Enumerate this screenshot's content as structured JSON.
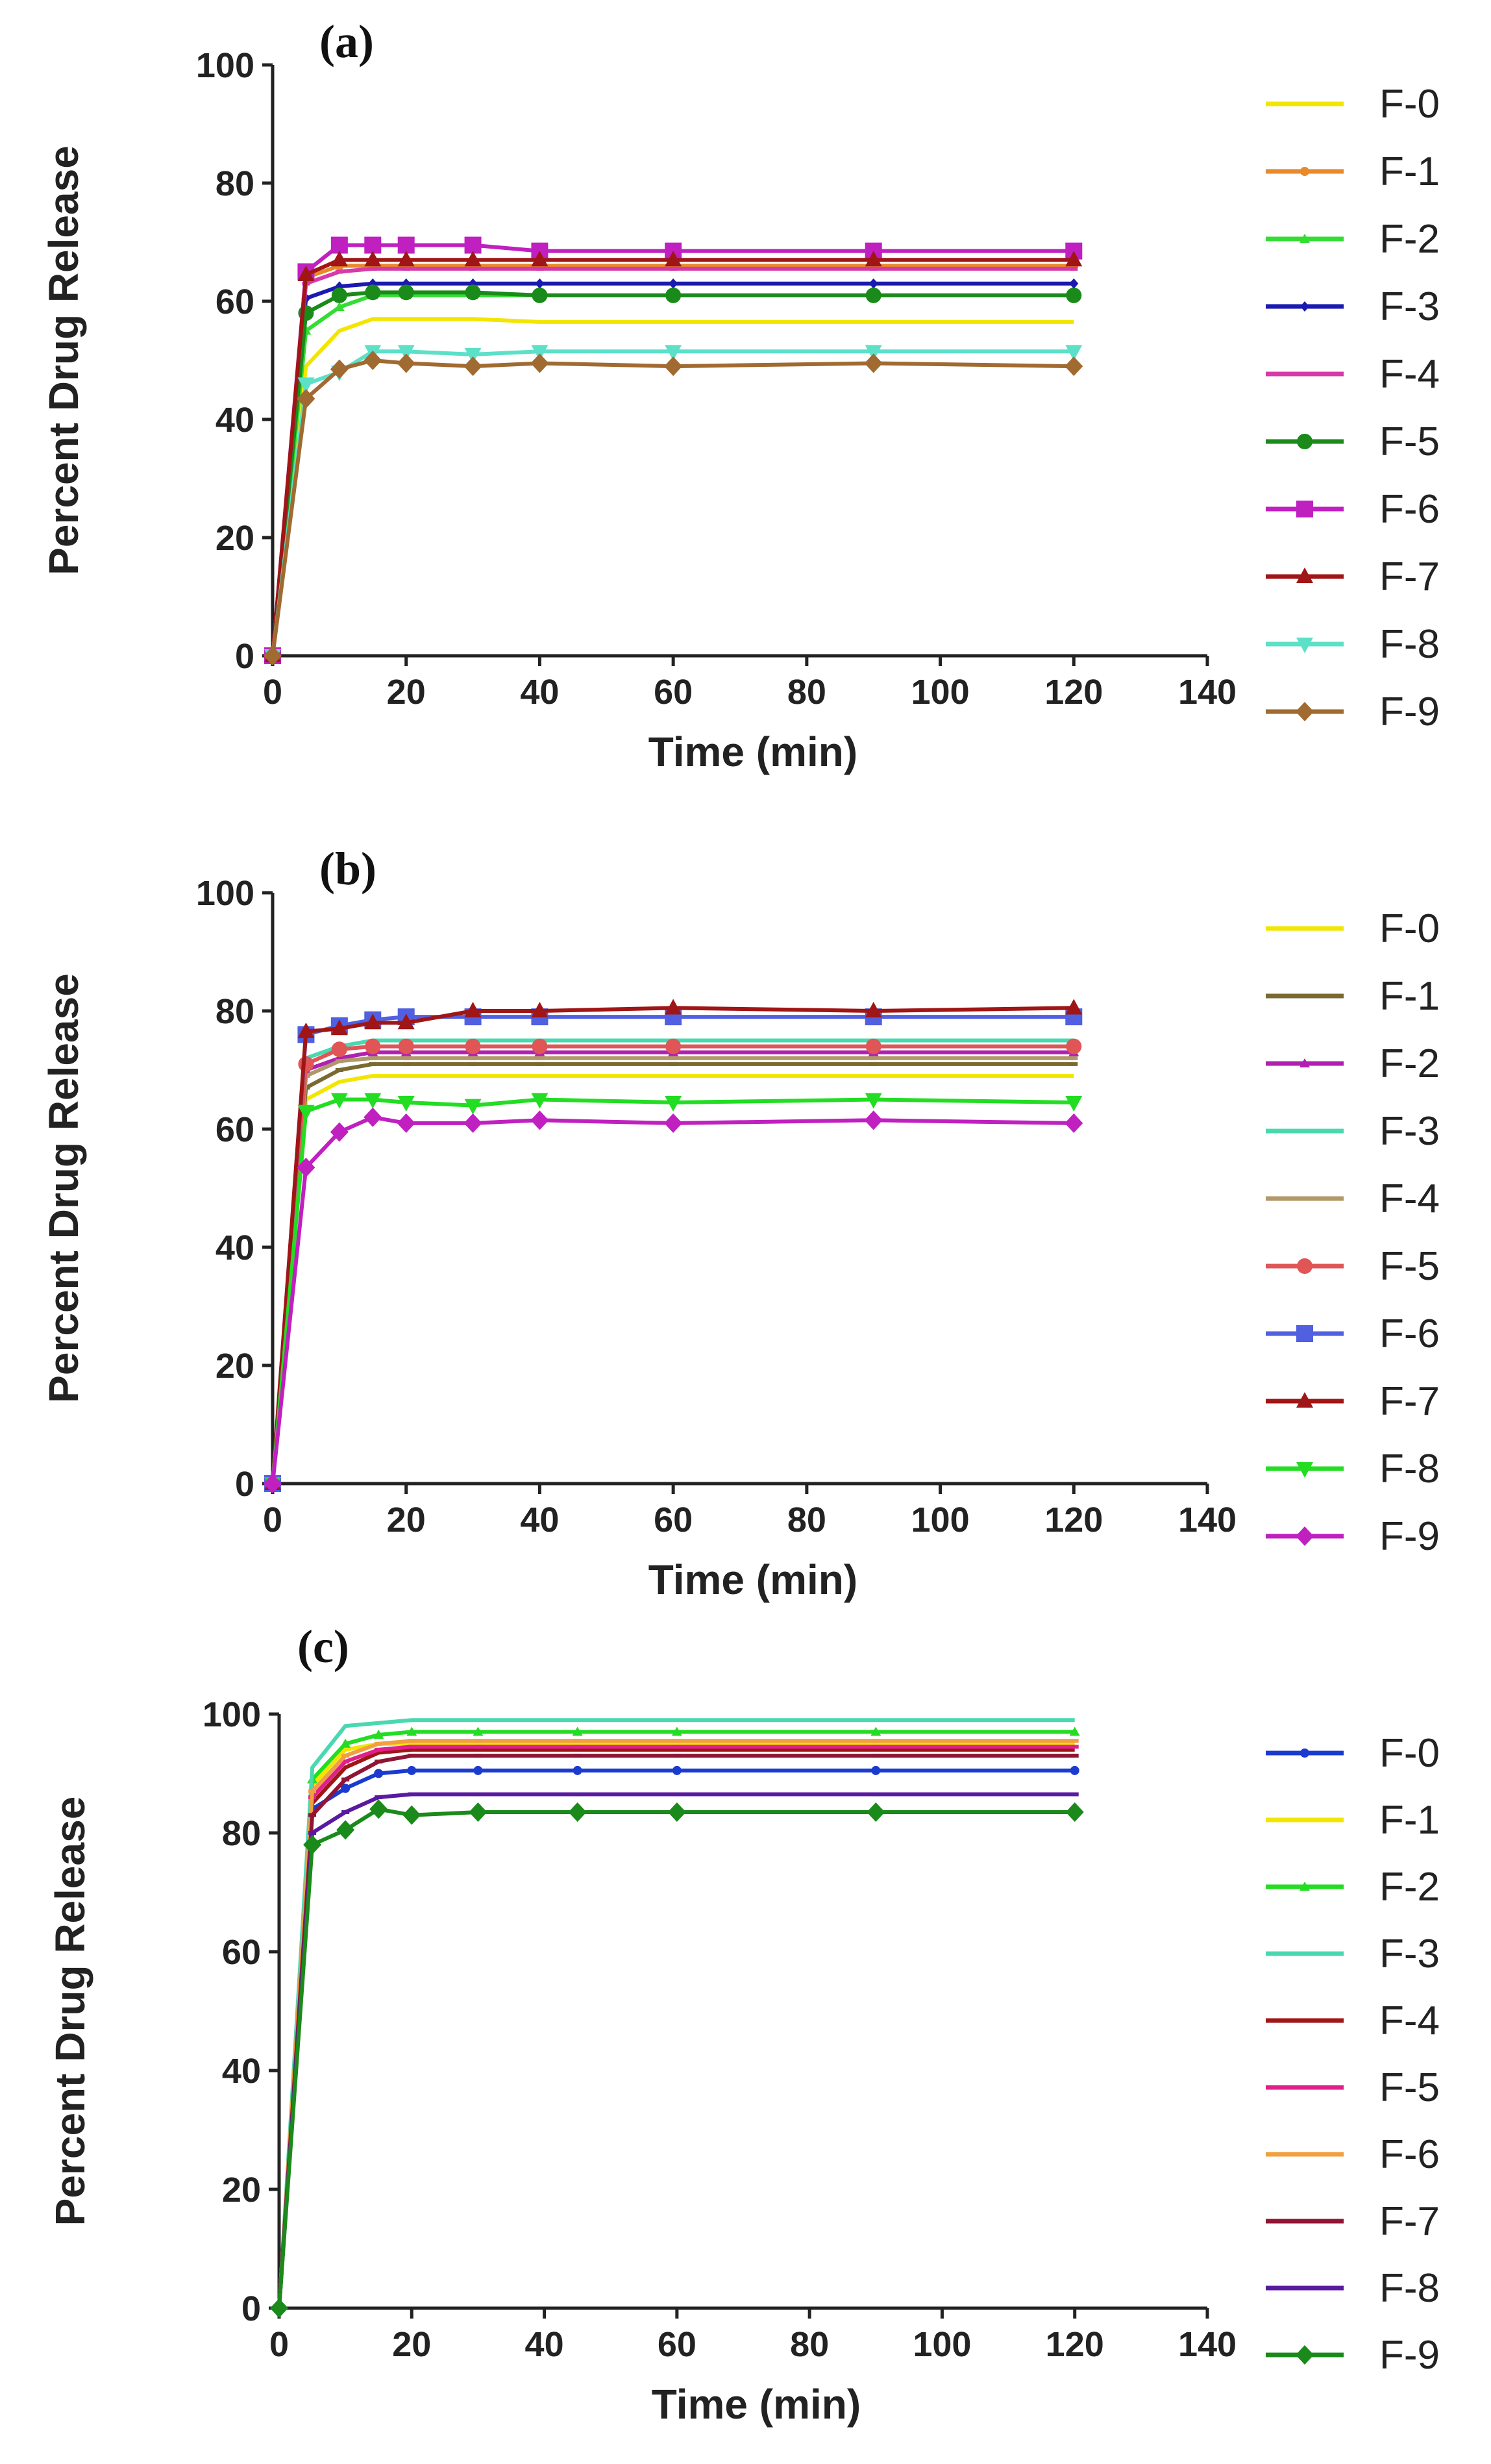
{
  "chart_data": [
    {
      "type": "line",
      "panel_label": "(a)",
      "xlabel": "Time (min)",
      "ylabel": "Percent Drug Release",
      "xlim": [
        0,
        140
      ],
      "ylim": [
        0,
        100
      ],
      "xticks": [
        0,
        20,
        40,
        60,
        80,
        100,
        120,
        140
      ],
      "yticks": [
        0,
        20,
        40,
        60,
        80,
        100
      ],
      "grid": false,
      "legend_position": "right",
      "x": [
        0,
        5,
        10,
        15,
        20,
        30,
        40,
        60,
        90,
        120
      ],
      "series": [
        {
          "name": "F-0",
          "color": "#f2e600",
          "marker": "none",
          "values": [
            0,
            49,
            55,
            57,
            57,
            57,
            56.5,
            56.5,
            56.5,
            56.5
          ]
        },
        {
          "name": "F-1",
          "color": "#e8892a",
          "marker": "circle-small",
          "values": [
            0,
            64,
            66,
            66,
            66,
            66,
            66,
            66,
            66,
            66
          ]
        },
        {
          "name": "F-2",
          "color": "#33dd33",
          "marker": "triangle-small",
          "values": [
            0,
            55,
            59,
            61,
            61,
            61,
            61,
            61,
            61,
            61
          ]
        },
        {
          "name": "F-3",
          "color": "#1a1ab0",
          "marker": "diamond-small",
          "values": [
            0,
            60.5,
            62.5,
            63,
            63,
            63,
            63,
            63,
            63,
            63
          ]
        },
        {
          "name": "F-4",
          "color": "#d63aa8",
          "marker": "dash",
          "values": [
            0,
            63,
            65,
            65.5,
            65.5,
            65.5,
            65.5,
            65.5,
            65.5,
            65.5
          ]
        },
        {
          "name": "F-5",
          "color": "#1a8a1a",
          "marker": "circle",
          "values": [
            0,
            58,
            61,
            61.5,
            61.5,
            61.5,
            61,
            61,
            61,
            61
          ]
        },
        {
          "name": "F-6",
          "color": "#c020c0",
          "marker": "square",
          "values": [
            0,
            65,
            69.5,
            69.5,
            69.5,
            69.5,
            68.5,
            68.5,
            68.5,
            68.5
          ]
        },
        {
          "name": "F-7",
          "color": "#a01515",
          "marker": "triangle",
          "values": [
            0,
            64.5,
            67,
            67,
            67,
            67,
            67,
            67,
            67,
            67
          ]
        },
        {
          "name": "F-8",
          "color": "#5ce0c8",
          "marker": "triangle-down",
          "values": [
            0,
            46,
            48,
            51.5,
            51.5,
            51,
            51.5,
            51.5,
            51.5,
            51.5
          ]
        },
        {
          "name": "F-9",
          "color": "#a06a30",
          "marker": "diamond",
          "values": [
            0,
            43.5,
            48.5,
            50,
            49.5,
            49,
            49.5,
            49,
            49.5,
            49
          ]
        }
      ]
    },
    {
      "type": "line",
      "panel_label": "(b)",
      "xlabel": "Time (min)",
      "ylabel": "Percent Drug Release",
      "xlim": [
        0,
        140
      ],
      "ylim": [
        0,
        100
      ],
      "xticks": [
        0,
        20,
        40,
        60,
        80,
        100,
        120,
        140
      ],
      "yticks": [
        0,
        20,
        40,
        60,
        80,
        100
      ],
      "grid": false,
      "legend_position": "right",
      "x": [
        0,
        5,
        10,
        15,
        20,
        30,
        40,
        60,
        90,
        120
      ],
      "series": [
        {
          "name": "F-0",
          "color": "#f2e600",
          "marker": "none",
          "values": [
            0,
            65,
            68,
            69,
            69,
            69,
            69,
            69,
            69,
            69
          ]
        },
        {
          "name": "F-1",
          "color": "#7a6a30",
          "marker": "dash",
          "values": [
            0,
            67,
            70,
            71,
            71,
            71,
            71,
            71,
            71,
            71
          ]
        },
        {
          "name": "F-2",
          "color": "#b020b0",
          "marker": "triangle-small",
          "values": [
            0,
            70,
            72,
            73,
            73,
            73,
            73,
            73,
            73,
            73
          ]
        },
        {
          "name": "F-3",
          "color": "#4ad8b0",
          "marker": "none",
          "values": [
            0,
            72,
            74,
            75,
            75,
            75,
            75,
            75,
            75,
            75
          ]
        },
        {
          "name": "F-4",
          "color": "#b0986a",
          "marker": "dash",
          "values": [
            0,
            69,
            71.5,
            72,
            72,
            72,
            72,
            72,
            72,
            72
          ]
        },
        {
          "name": "F-5",
          "color": "#e05555",
          "marker": "circle",
          "values": [
            0,
            71,
            73.5,
            74,
            74,
            74,
            74,
            74,
            74,
            74
          ]
        },
        {
          "name": "F-6",
          "color": "#5060e0",
          "marker": "square",
          "values": [
            0,
            76,
            77.5,
            78.5,
            79,
            79,
            79,
            79,
            79,
            79
          ]
        },
        {
          "name": "F-7",
          "color": "#a01515",
          "marker": "triangle",
          "values": [
            0,
            76.5,
            77,
            78,
            78,
            80,
            80,
            80.5,
            80,
            80.5
          ]
        },
        {
          "name": "F-8",
          "color": "#22dd22",
          "marker": "triangle-down",
          "values": [
            0,
            63,
            65,
            65,
            64.5,
            64,
            65,
            64.5,
            65,
            64.5
          ]
        },
        {
          "name": "F-9",
          "color": "#c020c0",
          "marker": "diamond",
          "values": [
            0,
            53.5,
            59.5,
            62,
            61,
            61,
            61.5,
            61,
            61.5,
            61
          ]
        }
      ]
    },
    {
      "type": "line",
      "panel_label": "(c)",
      "xlabel": "Time (min)",
      "ylabel": "Percent Drug Release",
      "xlim": [
        0,
        140
      ],
      "ylim": [
        0,
        100
      ],
      "xticks": [
        0,
        20,
        40,
        60,
        80,
        100,
        120,
        140
      ],
      "yticks": [
        0,
        20,
        40,
        60,
        80,
        100
      ],
      "grid": false,
      "legend_position": "right",
      "x": [
        0,
        5,
        10,
        15,
        20,
        30,
        45,
        60,
        90,
        120
      ],
      "series": [
        {
          "name": "F-0",
          "color": "#1a3ad0",
          "marker": "circle-small",
          "values": [
            0,
            84,
            87.5,
            90,
            90.5,
            90.5,
            90.5,
            90.5,
            90.5,
            90.5
          ]
        },
        {
          "name": "F-1",
          "color": "#f2e600",
          "marker": "none",
          "values": [
            0,
            88,
            94,
            95,
            95,
            95,
            95,
            95,
            95,
            95
          ]
        },
        {
          "name": "F-2",
          "color": "#22dd22",
          "marker": "triangle-small",
          "values": [
            0,
            89,
            95,
            96.5,
            97,
            97,
            97,
            97,
            97,
            97
          ]
        },
        {
          "name": "F-3",
          "color": "#4ad8b0",
          "marker": "none",
          "values": [
            0,
            91,
            98,
            98.5,
            99,
            99,
            99,
            99,
            99,
            99
          ]
        },
        {
          "name": "F-4",
          "color": "#a01515",
          "marker": "none",
          "values": [
            0,
            85,
            91,
            93.5,
            94,
            94,
            94,
            94,
            94,
            94
          ]
        },
        {
          "name": "F-5",
          "color": "#e0208a",
          "marker": "dash",
          "values": [
            0,
            86,
            92,
            94,
            94.5,
            94.5,
            94.5,
            94.5,
            94.5,
            94.5
          ]
        },
        {
          "name": "F-6",
          "color": "#f0a040",
          "marker": "dash",
          "values": [
            0,
            87,
            93,
            95,
            95.5,
            95.5,
            95.5,
            95.5,
            95.5,
            95.5
          ]
        },
        {
          "name": "F-7",
          "color": "#901535",
          "marker": "dash",
          "values": [
            0,
            83,
            89,
            92,
            93,
            93,
            93,
            93,
            93,
            93
          ]
        },
        {
          "name": "F-8",
          "color": "#5a1aa0",
          "marker": "dash",
          "values": [
            0,
            80,
            83.5,
            86,
            86.5,
            86.5,
            86.5,
            86.5,
            86.5,
            86.5
          ]
        },
        {
          "name": "F-9",
          "color": "#1a8a1a",
          "marker": "diamond",
          "values": [
            0,
            78,
            80.5,
            84,
            83,
            83.5,
            83.5,
            83.5,
            83.5,
            83.5
          ]
        }
      ]
    }
  ]
}
